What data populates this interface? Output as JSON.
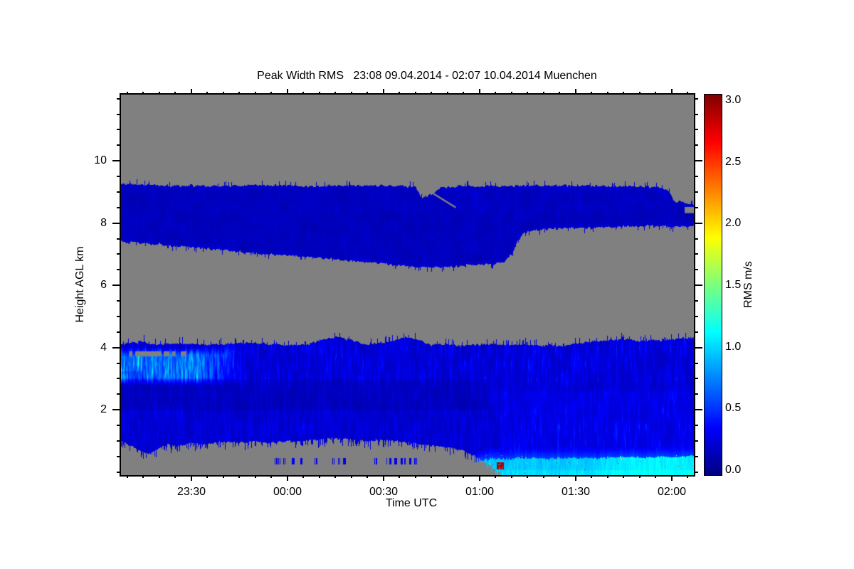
{
  "chart_data": {
    "type": "heatmap",
    "title": "Peak Width RMS   23:08 09.04.2014 - 02:07 10.04.2014 Muenchen",
    "station": "Muenchen",
    "time_start": "23:08 09.04.2014",
    "time_end": "02:07 10.04.2014",
    "xlabel": "Time UTC",
    "ylabel": "Height AGL km",
    "colorbar_label": "RMS m/s",
    "x_axis": {
      "duration_min": 179,
      "major_ticks": [
        {
          "t": 22,
          "label": "23:30"
        },
        {
          "t": 52,
          "label": "00:00"
        },
        {
          "t": 82,
          "label": "00:30"
        },
        {
          "t": 112,
          "label": "01:00"
        },
        {
          "t": 142,
          "label": "01:30"
        },
        {
          "t": 172,
          "label": "02:00"
        }
      ],
      "minor_tick_interval_min": 5,
      "minor_tick_start_min": 2
    },
    "y_axis": {
      "range_km": [
        -0.1,
        12.13
      ],
      "major_ticks": [
        {
          "v": 2,
          "label": "2"
        },
        {
          "v": 4,
          "label": "4"
        },
        {
          "v": 6,
          "label": "6"
        },
        {
          "v": 8,
          "label": "8"
        },
        {
          "v": 10,
          "label": "10"
        }
      ],
      "minor_tick_step_km": 0.5
    },
    "colorbar": {
      "range": [
        0,
        3
      ],
      "units": "m/s",
      "colormap": "jet",
      "major_ticks": [
        {
          "v": 0.0,
          "label": "0.0"
        },
        {
          "v": 0.5,
          "label": "0.5"
        },
        {
          "v": 1.0,
          "label": "1.0"
        },
        {
          "v": 1.5,
          "label": "1.5"
        },
        {
          "v": 2.0,
          "label": "2.0"
        },
        {
          "v": 2.5,
          "label": "2.5"
        },
        {
          "v": 3.0,
          "label": "3.0"
        }
      ],
      "minor_tick_step": 0.1,
      "gradient_stops": [
        {
          "at": 0.0,
          "color": "#000080"
        },
        {
          "at": 0.125,
          "color": "#0000FF"
        },
        {
          "at": 0.375,
          "color": "#00FFFF"
        },
        {
          "at": 0.5,
          "color": "#7CFF7C"
        },
        {
          "at": 0.625,
          "color": "#FFFF00"
        },
        {
          "at": 0.875,
          "color": "#FF0000"
        },
        {
          "at": 1.0,
          "color": "#800000"
        }
      ]
    },
    "no_data_color": "#808080",
    "layers": {
      "upper_cloud_band": {
        "description": "elevated layer of low RMS (about 0.1-0.3 m/s, dark blue)",
        "top_profile_t_km": [
          [
            0,
            9.27
          ],
          [
            15,
            9.22
          ],
          [
            30,
            9.2
          ],
          [
            45,
            9.23
          ],
          [
            60,
            9.2
          ],
          [
            75,
            9.22
          ],
          [
            88,
            9.2
          ],
          [
            92,
            9.18
          ],
          [
            94,
            8.82
          ],
          [
            97,
            8.95
          ],
          [
            100,
            9.15
          ],
          [
            105,
            9.2
          ],
          [
            120,
            9.2
          ],
          [
            135,
            9.22
          ],
          [
            150,
            9.2
          ],
          [
            163,
            9.18
          ],
          [
            168,
            9.15
          ],
          [
            171,
            9.05
          ],
          [
            173,
            8.68
          ],
          [
            175,
            8.72
          ],
          [
            177,
            8.65
          ],
          [
            179,
            8.62
          ]
        ],
        "bottom_profile_t_km": [
          [
            0,
            7.42
          ],
          [
            12,
            7.32
          ],
          [
            25,
            7.2
          ],
          [
            40,
            7.05
          ],
          [
            55,
            6.95
          ],
          [
            70,
            6.82
          ],
          [
            82,
            6.7
          ],
          [
            92,
            6.6
          ],
          [
            102,
            6.6
          ],
          [
            112,
            6.68
          ],
          [
            119,
            6.72
          ],
          [
            122,
            7.0
          ],
          [
            124,
            7.45
          ],
          [
            126,
            7.72
          ],
          [
            130,
            7.8
          ],
          [
            140,
            7.85
          ],
          [
            152,
            7.88
          ],
          [
            165,
            7.92
          ],
          [
            172,
            7.9
          ],
          [
            179,
            7.92
          ]
        ],
        "base_rms": 0.12
      },
      "boundary_layer": {
        "description": "lower aerosol layer, RMS about 0.1-0.6 m/s with bright streaks on the left edge",
        "top_profile_t_km": [
          [
            0,
            4.12
          ],
          [
            6,
            4.2
          ],
          [
            12,
            4.1
          ],
          [
            18,
            4.15
          ],
          [
            25,
            4.1
          ],
          [
            32,
            4.12
          ],
          [
            40,
            4.18
          ],
          [
            47,
            4.12
          ],
          [
            53,
            4.08
          ],
          [
            58,
            4.12
          ],
          [
            64,
            4.3
          ],
          [
            68,
            4.35
          ],
          [
            72,
            4.25
          ],
          [
            76,
            4.1
          ],
          [
            80,
            4.15
          ],
          [
            85,
            4.22
          ],
          [
            89,
            4.38
          ],
          [
            93,
            4.25
          ],
          [
            97,
            4.1
          ],
          [
            102,
            4.12
          ],
          [
            106,
            4.05
          ],
          [
            110,
            4.1
          ],
          [
            115,
            4.15
          ],
          [
            120,
            4.1
          ],
          [
            126,
            4.1
          ],
          [
            132,
            4.08
          ],
          [
            138,
            4.05
          ],
          [
            143,
            4.15
          ],
          [
            148,
            4.2
          ],
          [
            153,
            4.25
          ],
          [
            158,
            4.28
          ],
          [
            163,
            4.22
          ],
          [
            168,
            4.25
          ],
          [
            173,
            4.3
          ],
          [
            179,
            4.33
          ]
        ],
        "bottom_profile_t_km": [
          [
            0,
            1.0
          ],
          [
            4,
            0.8
          ],
          [
            8,
            0.6
          ],
          [
            11,
            0.72
          ],
          [
            14,
            0.9
          ],
          [
            18,
            0.85
          ],
          [
            22,
            0.95
          ],
          [
            27,
            0.9
          ],
          [
            32,
            1.0
          ],
          [
            37,
            0.95
          ],
          [
            42,
            1.0
          ],
          [
            47,
            0.95
          ],
          [
            52,
            1.0
          ],
          [
            57,
            1.0
          ],
          [
            62,
            1.05
          ],
          [
            67,
            1.1
          ],
          [
            72,
            1.05
          ],
          [
            77,
            1.0
          ],
          [
            82,
            1.05
          ],
          [
            86,
            1.0
          ],
          [
            90,
            0.95
          ],
          [
            94,
            0.9
          ],
          [
            98,
            0.85
          ],
          [
            102,
            0.8
          ],
          [
            105,
            0.75
          ],
          [
            108,
            0.65
          ],
          [
            110,
            0.55
          ],
          [
            112,
            0.4
          ],
          [
            114,
            0.3
          ],
          [
            116,
            0.15
          ],
          [
            118,
            0.02
          ],
          [
            120,
            0
          ],
          [
            179,
            0
          ]
        ],
        "base_rms": 0.2,
        "bright_left_zone": {
          "t": [
            0,
            38
          ],
          "h_km": [
            2.8,
            4.02
          ],
          "rms": [
            0.4,
            0.9
          ]
        },
        "dark_stripe": {
          "t": [
            0,
            115
          ],
          "h_km": [
            2.0,
            3.0
          ]
        }
      },
      "surface_cyan_band": {
        "description": "near-surface band of enhanced RMS about 0.8-1.2 m/s appearing after 01:00",
        "top_profile_t_km": [
          [
            106,
            0.05
          ],
          [
            110,
            0.28
          ],
          [
            113,
            0.38
          ],
          [
            116,
            0.45
          ],
          [
            120,
            0.42
          ],
          [
            126,
            0.46
          ],
          [
            132,
            0.44
          ],
          [
            140,
            0.47
          ],
          [
            148,
            0.45
          ],
          [
            156,
            0.5
          ],
          [
            164,
            0.48
          ],
          [
            172,
            0.5
          ],
          [
            179,
            0.52
          ]
        ],
        "rms": [
          0.8,
          1.2
        ]
      }
    },
    "features": {
      "upper_band_crack": {
        "from_t_km": [
          95.2,
          9.1
        ],
        "to_t_km": [
          104.6,
          8.5
        ]
      },
      "upper_band_right_notch": {
        "t": [
          176.1,
          179
        ],
        "h_km": [
          8.32,
          8.52
        ]
      },
      "hot_speckles": {
        "t": [
          112,
          179
        ],
        "h_km": [
          0,
          0.55
        ],
        "rms": [
          1.5,
          2.9
        ]
      },
      "dark_red_blob": {
        "t": [
          117.2,
          119.6
        ],
        "h_km": [
          0.1,
          0.32
        ],
        "rms": 2.8
      },
      "detached_specks_in_gray": {
        "t": [
          48,
          104
        ],
        "h_km": [
          0.26,
          0.46
        ],
        "rms": 0.3
      },
      "dashed_gap_below_top_left": {
        "t": [
          0,
          21
        ],
        "h_km": [
          3.74,
          3.88
        ]
      }
    }
  }
}
